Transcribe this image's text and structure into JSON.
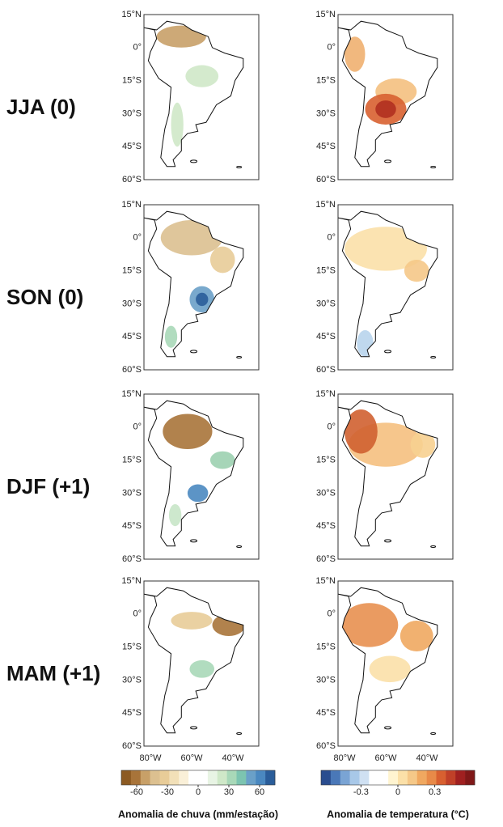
{
  "rows": [
    {
      "label": "JJA (0)"
    },
    {
      "label": "SON (0)"
    },
    {
      "label": "DJF (+1)"
    },
    {
      "label": "MAM (+1)"
    }
  ],
  "latitude_labels": [
    "15°N",
    "0°",
    "15°S",
    "30°S",
    "45°S",
    "60°S"
  ],
  "longitude_labels": [
    "80°W",
    "60°W",
    "40°W"
  ],
  "colorbars": [
    {
      "title": "Anomalia de chuva (mm/estação)",
      "ticks": [
        "-60",
        "-30",
        "0",
        "30",
        "60"
      ],
      "colors": [
        "#8c5a22",
        "#a8743a",
        "#c8a068",
        "#dcc090",
        "#e8cc98",
        "#f2e0b8",
        "#faf0d8",
        "#ffffff",
        "#ffffff",
        "#e8f4e4",
        "#cfe8c8",
        "#a8d8b8",
        "#7cc4b0",
        "#6aa0c8",
        "#4a88c0",
        "#2a5d9a"
      ]
    },
    {
      "title": "Anomalia de temperatura (°C)",
      "ticks": [
        "-0.3",
        "0",
        "0.3"
      ],
      "colors": [
        "#2a4d8f",
        "#4a78b8",
        "#7aa4d4",
        "#a8c8e8",
        "#cfe0f2",
        "#ffffff",
        "#ffffff",
        "#fff4d0",
        "#fbe0a8",
        "#f5c888",
        "#f0a860",
        "#e88a48",
        "#d86030",
        "#c04028",
        "#a02020",
        "#801818"
      ]
    }
  ]
}
